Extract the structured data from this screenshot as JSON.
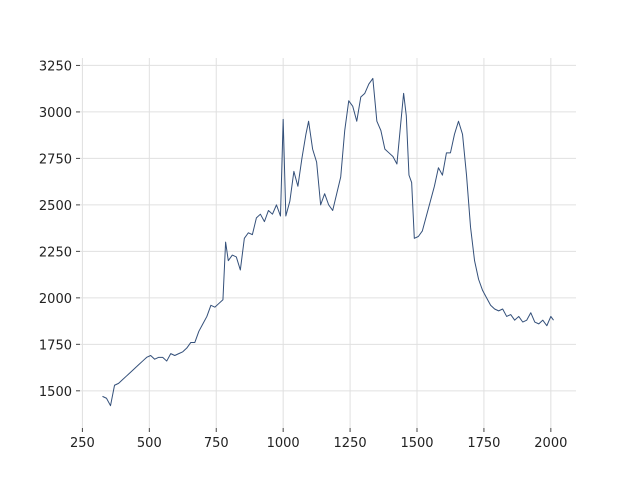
{
  "chart_data": {
    "type": "line",
    "color": "#34507a",
    "grid": true,
    "xlim": [
      241,
      2094
    ],
    "ylim": [
      1300,
      3290
    ],
    "xticks": [
      250,
      500,
      750,
      1000,
      1250,
      1500,
      1750,
      2000
    ],
    "yticks": [
      1500,
      1750,
      2000,
      2250,
      2500,
      2750,
      3000,
      3250
    ],
    "x": [
      325,
      340,
      355,
      370,
      385,
      400,
      415,
      430,
      445,
      460,
      475,
      490,
      505,
      520,
      535,
      550,
      565,
      580,
      595,
      610,
      625,
      640,
      655,
      670,
      685,
      700,
      715,
      730,
      745,
      760,
      775,
      785,
      795,
      810,
      825,
      840,
      855,
      870,
      885,
      900,
      915,
      930,
      945,
      960,
      975,
      990,
      1000,
      1010,
      1025,
      1040,
      1055,
      1070,
      1085,
      1095,
      1110,
      1125,
      1140,
      1155,
      1170,
      1185,
      1200,
      1215,
      1230,
      1245,
      1260,
      1275,
      1290,
      1305,
      1320,
      1335,
      1350,
      1365,
      1380,
      1395,
      1410,
      1425,
      1440,
      1450,
      1460,
      1470,
      1480,
      1490,
      1505,
      1520,
      1535,
      1550,
      1565,
      1580,
      1595,
      1610,
      1625,
      1640,
      1655,
      1670,
      1685,
      1700,
      1715,
      1730,
      1745,
      1760,
      1775,
      1790,
      1805,
      1820,
      1835,
      1850,
      1865,
      1880,
      1895,
      1910,
      1925,
      1940,
      1955,
      1970,
      1985,
      2000,
      2010
    ],
    "values": [
      1470,
      1460,
      1420,
      1530,
      1540,
      1560,
      1580,
      1600,
      1620,
      1640,
      1660,
      1680,
      1690,
      1670,
      1680,
      1680,
      1660,
      1700,
      1690,
      1700,
      1710,
      1730,
      1760,
      1760,
      1820,
      1860,
      1900,
      1960,
      1950,
      1970,
      1990,
      2300,
      2200,
      2230,
      2220,
      2150,
      2320,
      2350,
      2340,
      2430,
      2450,
      2410,
      2470,
      2450,
      2500,
      2440,
      2960,
      2440,
      2520,
      2680,
      2600,
      2750,
      2880,
      2950,
      2800,
      2730,
      2500,
      2560,
      2500,
      2470,
      2560,
      2650,
      2900,
      3060,
      3030,
      2950,
      3080,
      3100,
      3150,
      3180,
      2950,
      2900,
      2800,
      2780,
      2760,
      2720,
      2950,
      3100,
      2980,
      2660,
      2620,
      2320,
      2330,
      2360,
      2440,
      2520,
      2600,
      2700,
      2660,
      2780,
      2780,
      2880,
      2950,
      2880,
      2660,
      2380,
      2200,
      2100,
      2040,
      2000,
      1960,
      1940,
      1930,
      1940,
      1900,
      1910,
      1880,
      1900,
      1870,
      1880,
      1920,
      1870,
      1860,
      1880,
      1850,
      1900,
      1880
    ]
  }
}
